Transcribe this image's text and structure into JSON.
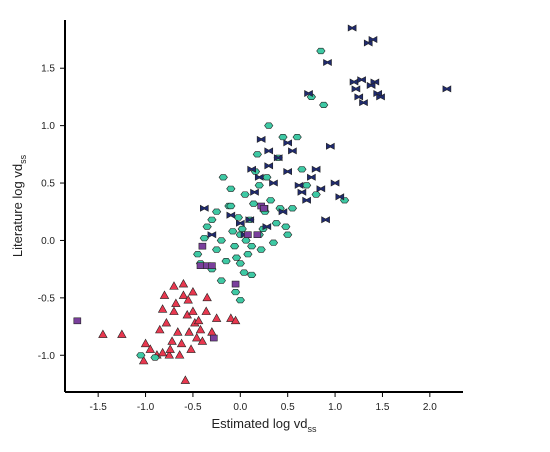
{
  "chart_data": {
    "type": "scatter",
    "xlabel": {
      "main": "Estimated log vd",
      "sub": "ss"
    },
    "ylabel": {
      "main": "Literature log vd",
      "sub": "ss"
    },
    "xlim": [
      -1.85,
      2.35
    ],
    "ylim": [
      -1.32,
      1.92
    ],
    "x_ticks": [
      -1.5,
      -1.0,
      -0.5,
      0.0,
      0.5,
      1.0,
      1.5,
      2.0
    ],
    "x_tick_labels": [
      "-1.5",
      "-1.0",
      "-0.5",
      "0.0",
      "0.5",
      "1.0",
      "1.5",
      "2.0"
    ],
    "y_ticks": [
      -1.0,
      -0.5,
      0.0,
      0.5,
      1.0,
      1.5
    ],
    "y_tick_labels": [
      "-1.0",
      "-0.5",
      "0.0",
      "0.5",
      "1.0",
      "1.5"
    ],
    "grid": false,
    "colors": {
      "red": "#e8384f",
      "teal": "#3ec9a4",
      "navy": "#1f2a6e",
      "purple": "#7a3f9c",
      "axis": "#000000"
    },
    "series": [
      {
        "marker": "triangle",
        "color": "red",
        "points": [
          [
            -1.45,
            -0.82
          ],
          [
            -1.25,
            -0.82
          ],
          [
            -1.0,
            -0.9
          ],
          [
            -1.02,
            -1.05
          ],
          [
            -0.95,
            -0.95
          ],
          [
            -0.85,
            -0.78
          ],
          [
            -0.82,
            -0.6
          ],
          [
            -0.8,
            -0.48
          ],
          [
            -0.78,
            -0.72
          ],
          [
            -0.75,
            -1.0
          ],
          [
            -0.72,
            -0.88
          ],
          [
            -0.7,
            -0.62
          ],
          [
            -0.68,
            -0.55
          ],
          [
            -0.66,
            -0.8
          ],
          [
            -0.64,
            -1.0
          ],
          [
            -0.62,
            -0.9
          ],
          [
            -0.6,
            -0.48
          ],
          [
            -0.58,
            -1.22
          ],
          [
            -0.56,
            -0.65
          ],
          [
            -0.54,
            -0.8
          ],
          [
            -0.52,
            -0.95
          ],
          [
            -0.5,
            -0.62
          ],
          [
            -0.48,
            -0.72
          ],
          [
            -0.46,
            -0.85
          ],
          [
            -0.44,
            -0.7
          ],
          [
            -0.42,
            -0.78
          ],
          [
            -0.4,
            -0.88
          ],
          [
            -0.36,
            -0.62
          ],
          [
            -0.3,
            -0.8
          ],
          [
            -0.25,
            -0.68
          ],
          [
            -0.1,
            -0.68
          ],
          [
            -0.05,
            -0.7
          ],
          [
            -0.88,
            -1.0
          ],
          [
            -0.74,
            -0.95
          ],
          [
            -0.6,
            -0.38
          ],
          [
            -0.55,
            -0.52
          ],
          [
            -0.7,
            -0.4
          ],
          [
            -0.82,
            -0.98
          ],
          [
            -0.5,
            -0.45
          ],
          [
            -0.35,
            -0.5
          ]
        ]
      },
      {
        "marker": "hexagon",
        "color": "teal",
        "points": [
          [
            -1.05,
            -1.0
          ],
          [
            -0.9,
            -1.02
          ],
          [
            -0.45,
            -0.12
          ],
          [
            -0.42,
            -0.2
          ],
          [
            -0.38,
            0.02
          ],
          [
            -0.35,
            0.12
          ],
          [
            -0.3,
            0.18
          ],
          [
            -0.25,
            0.25
          ],
          [
            -0.2,
            0.0
          ],
          [
            -0.15,
            -0.18
          ],
          [
            -0.12,
            0.3
          ],
          [
            -0.1,
            0.45
          ],
          [
            -0.08,
            0.08
          ],
          [
            -0.06,
            -0.05
          ],
          [
            -0.04,
            -0.15
          ],
          [
            -0.02,
            0.2
          ],
          [
            0.0,
            -0.2
          ],
          [
            0.02,
            0.1
          ],
          [
            0.04,
            -0.28
          ],
          [
            0.06,
            0.0
          ],
          [
            0.08,
            -0.12
          ],
          [
            0.1,
            0.18
          ],
          [
            0.12,
            -0.05
          ],
          [
            0.14,
            0.32
          ],
          [
            0.16,
            0.6
          ],
          [
            0.18,
            0.75
          ],
          [
            0.2,
            0.48
          ],
          [
            0.22,
            -0.08
          ],
          [
            0.24,
            0.1
          ],
          [
            0.26,
            0.25
          ],
          [
            0.28,
            0.55
          ],
          [
            0.3,
            1.0
          ],
          [
            0.32,
            0.35
          ],
          [
            0.35,
            -0.02
          ],
          [
            0.38,
            0.15
          ],
          [
            0.4,
            0.72
          ],
          [
            0.42,
            0.28
          ],
          [
            0.45,
            0.9
          ],
          [
            0.48,
            0.12
          ],
          [
            0.5,
            0.05
          ],
          [
            0.55,
            0.28
          ],
          [
            0.6,
            0.9
          ],
          [
            0.65,
            0.62
          ],
          [
            0.7,
            0.48
          ],
          [
            0.75,
            1.25
          ],
          [
            0.8,
            0.4
          ],
          [
            0.85,
            1.65
          ],
          [
            0.88,
            1.18
          ],
          [
            1.1,
            0.35
          ],
          [
            -0.2,
            -0.35
          ],
          [
            -0.05,
            -0.45
          ],
          [
            0.0,
            -0.52
          ],
          [
            -0.18,
            0.55
          ],
          [
            -0.3,
            -0.25
          ],
          [
            0.05,
            0.4
          ],
          [
            -0.1,
            0.3
          ],
          [
            0.12,
            -0.3
          ],
          [
            0.0,
            0.05
          ],
          [
            -0.25,
            -0.08
          ],
          [
            0.2,
            0.05
          ]
        ]
      },
      {
        "marker": "bowtie",
        "color": "navy",
        "points": [
          [
            -0.38,
            0.28
          ],
          [
            -0.3,
            0.05
          ],
          [
            -0.1,
            0.22
          ],
          [
            0.0,
            0.15
          ],
          [
            0.05,
            0.05
          ],
          [
            0.1,
            0.18
          ],
          [
            0.15,
            0.42
          ],
          [
            0.2,
            0.55
          ],
          [
            0.22,
            0.88
          ],
          [
            0.25,
            0.28
          ],
          [
            0.28,
            0.12
          ],
          [
            0.3,
            0.65
          ],
          [
            0.35,
            0.5
          ],
          [
            0.4,
            0.72
          ],
          [
            0.45,
            0.25
          ],
          [
            0.5,
            0.6
          ],
          [
            0.55,
            0.78
          ],
          [
            0.62,
            0.48
          ],
          [
            0.65,
            0.42
          ],
          [
            0.7,
            0.35
          ],
          [
            0.75,
            0.55
          ],
          [
            0.8,
            0.62
          ],
          [
            0.85,
            0.45
          ],
          [
            0.9,
            0.18
          ],
          [
            0.95,
            0.82
          ],
          [
            1.0,
            0.5
          ],
          [
            1.05,
            0.38
          ],
          [
            0.72,
            1.28
          ],
          [
            0.92,
            1.55
          ],
          [
            1.18,
            1.85
          ],
          [
            1.2,
            1.38
          ],
          [
            1.22,
            1.32
          ],
          [
            1.28,
            1.4
          ],
          [
            1.3,
            1.2
          ],
          [
            1.35,
            1.72
          ],
          [
            1.4,
            1.75
          ],
          [
            1.42,
            1.38
          ],
          [
            1.45,
            1.28
          ],
          [
            1.48,
            1.25
          ],
          [
            2.18,
            1.32
          ],
          [
            1.25,
            1.25
          ],
          [
            1.38,
            1.35
          ],
          [
            0.5,
            0.85
          ],
          [
            0.3,
            0.78
          ],
          [
            0.12,
            0.62
          ]
        ]
      },
      {
        "marker": "square",
        "color": "purple",
        "points": [
          [
            -1.72,
            -0.7
          ],
          [
            -0.42,
            -0.22
          ],
          [
            -0.35,
            -0.22
          ],
          [
            -0.4,
            -0.05
          ],
          [
            -0.3,
            -0.22
          ],
          [
            -0.28,
            -0.85
          ],
          [
            -0.05,
            -0.38
          ],
          [
            0.22,
            0.3
          ],
          [
            0.25,
            0.28
          ],
          [
            0.18,
            0.05
          ],
          [
            0.08,
            0.05
          ]
        ]
      }
    ]
  }
}
